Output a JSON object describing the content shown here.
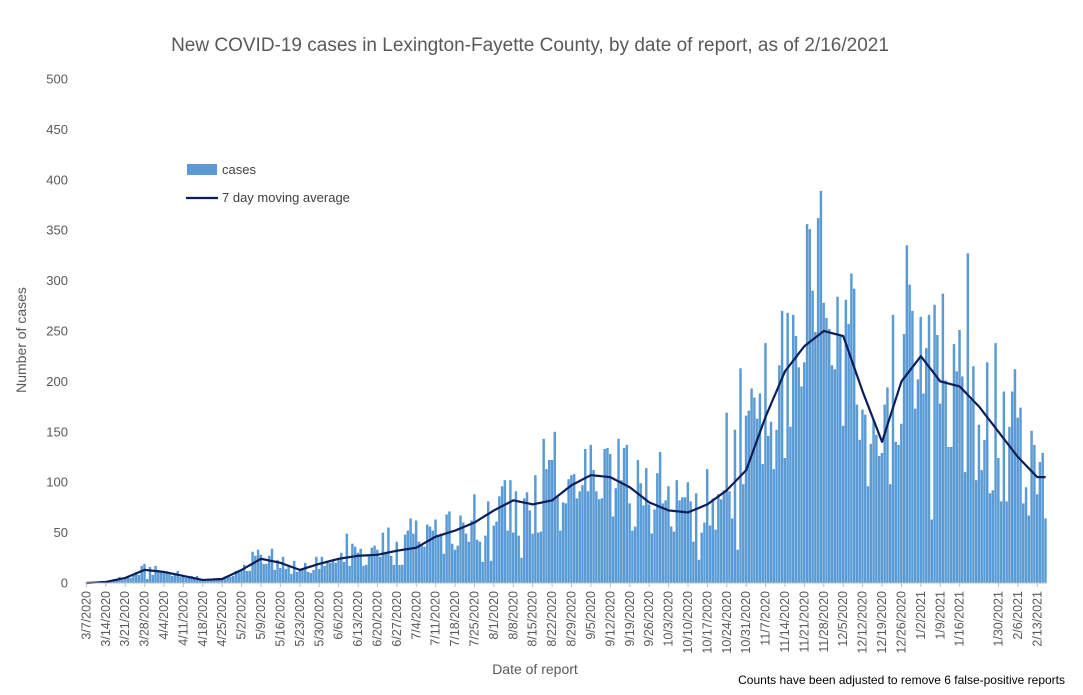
{
  "chart_data": {
    "type": "bar",
    "title": "New COVID-19 cases in Lexington-Fayette County, by date of report, as of 2/16/2021",
    "xlabel": "Date of report",
    "ylabel": "Number of cases",
    "ylim": [
      0,
      500
    ],
    "yticks": [
      0,
      50,
      100,
      150,
      200,
      250,
      300,
      350,
      400,
      450,
      500
    ],
    "grid": false,
    "legend_position": "top-left",
    "note": "Counts have been adjusted to remove 6 false-positive reports",
    "x_tick_labels": [
      "3/7/2020",
      "3/14/2020",
      "3/21/2020",
      "3/28/2020",
      "4/4/2020",
      "4/11/2020",
      "4/18/2020",
      "4/25/2020",
      "5/2/2020",
      "5/9/2020",
      "5/16/2020",
      "5/23/2020",
      "5/30/2020",
      "6/6/2020",
      "6/13/2020",
      "6/20/2020",
      "6/27/2020",
      "7/4/2020",
      "7/11/2020",
      "7/18/2020",
      "7/25/2020",
      "8/1/2020",
      "8/8/2020",
      "8/15/2020",
      "8/22/2020",
      "8/29/2020",
      "9/5/2020",
      "9/12/2020",
      "9/19/2020",
      "9/26/2020",
      "10/3/2020",
      "10/10/2020",
      "10/17/2020",
      "10/24/2020",
      "10/31/2020",
      "11/7/2020",
      "11/14/2020",
      "11/21/2020",
      "11/28/2020",
      "12/5/2020",
      "12/12/2020",
      "12/19/2020",
      "12/26/2020",
      "1/2/2021",
      "1/9/2021",
      "1/16/2021",
      "1/30/2021",
      "2/6/2021",
      "2/13/2021"
    ],
    "x_tick_offsets": [
      0,
      7,
      14,
      21,
      28,
      35,
      42,
      49,
      56,
      63,
      70,
      77,
      84,
      91,
      98,
      105,
      112,
      119,
      126,
      133,
      140,
      147,
      154,
      161,
      168,
      175,
      182,
      189,
      196,
      203,
      210,
      217,
      224,
      231,
      238,
      245,
      252,
      259,
      266,
      273,
      280,
      287,
      294,
      301,
      308,
      315,
      329,
      336,
      343
    ],
    "weekly_cases": [
      0,
      1,
      5,
      15,
      12,
      8,
      3,
      4,
      15,
      28,
      20,
      12,
      20,
      25,
      28,
      28,
      32,
      35,
      48,
      50,
      65,
      75,
      85,
      78,
      85,
      100,
      110,
      105,
      95,
      78,
      72,
      72,
      80,
      95,
      120,
      180,
      215,
      245,
      260,
      250,
      175,
      150,
      210,
      215,
      205,
      195,
      165,
      150,
      130,
      110
    ],
    "weekly_moving_average": [
      0,
      1,
      5,
      13,
      11,
      7,
      3,
      4,
      13,
      24,
      20,
      13,
      19,
      24,
      27,
      28,
      32,
      35,
      46,
      52,
      60,
      72,
      82,
      78,
      82,
      97,
      107,
      105,
      95,
      80,
      72,
      70,
      78,
      92,
      112,
      165,
      210,
      235,
      250,
      245,
      190,
      140,
      200,
      225,
      200,
      195,
      175,
      150,
      125,
      105
    ],
    "series": [
      {
        "name": "cases",
        "type": "bar",
        "color": "#5b9bd5"
      },
      {
        "name": "7 day moving average",
        "type": "line",
        "color": "#0b1e5b"
      }
    ]
  }
}
